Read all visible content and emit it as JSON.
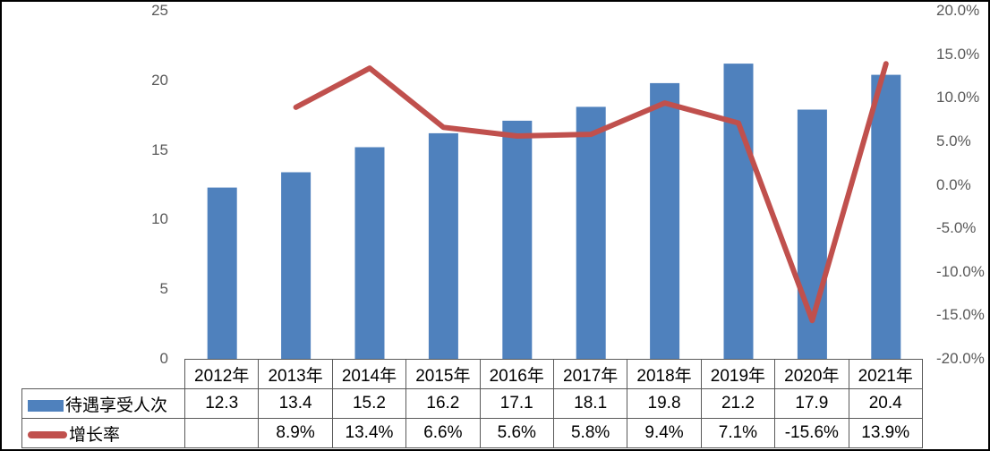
{
  "chart_data": {
    "type": "bar+line",
    "title": "",
    "categories": [
      "2012年",
      "2013年",
      "2014年",
      "2015年",
      "2016年",
      "2017年",
      "2018年",
      "2019年",
      "2020年",
      "2021年"
    ],
    "series": [
      {
        "name": "待遇享受人次",
        "type": "bar",
        "axis": "left",
        "color": "#4f81bd",
        "values": [
          12.3,
          13.4,
          15.2,
          16.2,
          17.1,
          18.1,
          19.8,
          21.2,
          17.9,
          20.4
        ]
      },
      {
        "name": "增长率",
        "type": "line",
        "axis": "right",
        "color": "#c0504d",
        "unit": "%",
        "values": [
          null,
          8.9,
          13.4,
          6.6,
          5.6,
          5.8,
          9.4,
          7.1,
          -15.6,
          13.9
        ]
      }
    ],
    "left_axis": {
      "min": 0,
      "max": 25,
      "ticks": [
        "25",
        "20",
        "15",
        "10",
        "5",
        "0"
      ]
    },
    "right_axis": {
      "min": -20,
      "max": 20,
      "ticks": [
        "20.0%",
        "15.0%",
        "10.0%",
        "5.0%",
        "0.0%",
        "-5.0%",
        "-10.0%",
        "-15.0%",
        "-20.0%"
      ]
    },
    "grid": false,
    "legend_position": "table-left"
  },
  "table": {
    "header": [
      "2012年",
      "2013年",
      "2014年",
      "2015年",
      "2016年",
      "2017年",
      "2018年",
      "2019年",
      "2020年",
      "2021年"
    ],
    "rows": [
      {
        "label": "待遇享受人次",
        "key": "bar",
        "cells": [
          "12.3",
          "13.4",
          "15.2",
          "16.2",
          "17.1",
          "18.1",
          "19.8",
          "21.2",
          "17.9",
          "20.4"
        ]
      },
      {
        "label": "增长率",
        "key": "line",
        "cells": [
          "",
          "8.9%",
          "13.4%",
          "6.6%",
          "5.6%",
          "5.8%",
          "9.4%",
          "7.1%",
          "-15.6%",
          "13.9%"
        ]
      }
    ]
  },
  "colors": {
    "bar": "#4f81bd",
    "line": "#c0504d",
    "axis_text": "#595959",
    "table_border": "#595959",
    "table_text": "#000000",
    "frame_border": "#000000"
  }
}
